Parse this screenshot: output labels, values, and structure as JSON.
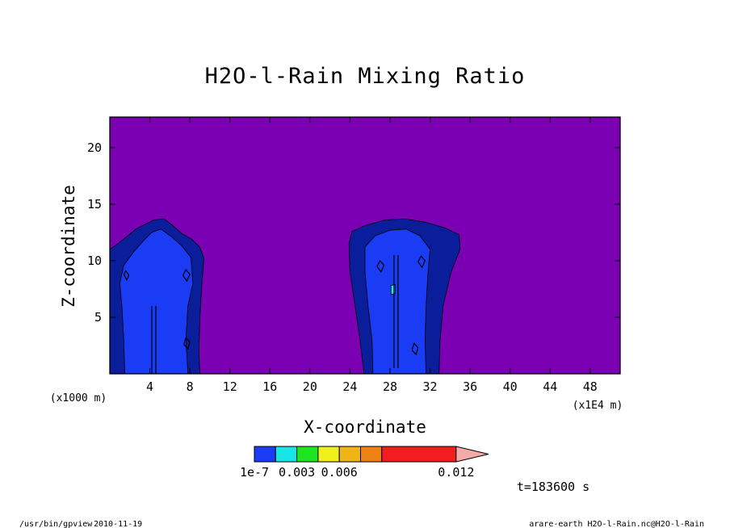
{
  "chart_data": {
    "type": "heatmap",
    "title": "H2O-l-Rain Mixing Ratio",
    "xlabel": "X-coordinate",
    "ylabel": "Z-coordinate",
    "x_unit": "(x1E4 m)",
    "y_unit": "(x1000 m)",
    "xlim": [
      0,
      51
    ],
    "ylim": [
      0,
      22.7
    ],
    "xticks": [
      4,
      8,
      12,
      16,
      20,
      24,
      28,
      32,
      36,
      40,
      44,
      48
    ],
    "yticks": [
      5,
      10,
      15,
      20
    ],
    "background_color": "#7b00b4",
    "colorbar": {
      "levels": [
        1e-07,
        0.0015,
        0.003,
        0.0045,
        0.006,
        0.0075,
        0.009,
        0.012
      ],
      "colors": [
        "#1a3cf5",
        "#18e6e6",
        "#1ee61e",
        "#f0f01e",
        "#f0b414",
        "#f08214",
        "#f01e1e",
        "#f57878",
        "#f5aaaa"
      ],
      "tick_labels": [
        {
          "value": 1e-07,
          "label": "1e-7"
        },
        {
          "value": 0.003,
          "label": "0.003"
        },
        {
          "value": 0.006,
          "label": "0.006"
        },
        {
          "value": 0.012,
          "label": "0.012"
        }
      ]
    },
    "regions": [
      {
        "level": "outer",
        "color": "#0a1e9c",
        "points": [
          [
            0,
            0
          ],
          [
            0,
            11
          ],
          [
            0.8,
            11.5
          ],
          [
            1.8,
            12.2
          ],
          [
            2.6,
            12.8
          ],
          [
            3.5,
            13.2
          ],
          [
            4.4,
            13.6
          ],
          [
            5.4,
            13.7
          ],
          [
            6.3,
            13.1
          ],
          [
            7.2,
            12.4
          ],
          [
            8.2,
            11.9
          ],
          [
            9,
            11.2
          ],
          [
            9.4,
            10.2
          ],
          [
            9.2,
            8
          ],
          [
            9,
            5
          ],
          [
            8.9,
            2
          ],
          [
            9,
            0
          ]
        ]
      },
      {
        "level": "1e-7",
        "color": "#1a3cf5",
        "points": [
          [
            1.5,
            0
          ],
          [
            1.4,
            3
          ],
          [
            1.2,
            6
          ],
          [
            1,
            8
          ],
          [
            1.4,
            9.6
          ],
          [
            2.4,
            10.8
          ],
          [
            3.4,
            11.8
          ],
          [
            4.2,
            12.5
          ],
          [
            5.1,
            12.8
          ],
          [
            6.2,
            12.1
          ],
          [
            7.2,
            11.3
          ],
          [
            8.1,
            10.3
          ],
          [
            8.3,
            8
          ],
          [
            7.8,
            6
          ],
          [
            7.6,
            3
          ],
          [
            7.8,
            0
          ]
        ]
      },
      {
        "level": "outer",
        "color": "#0a1e9c",
        "points": [
          [
            25.4,
            0
          ],
          [
            25,
            3
          ],
          [
            24.5,
            6
          ],
          [
            24,
            9
          ],
          [
            23.9,
            11.5
          ],
          [
            24.2,
            12.6
          ],
          [
            25.5,
            13.1
          ],
          [
            27.5,
            13.6
          ],
          [
            29.5,
            13.7
          ],
          [
            31.5,
            13.4
          ],
          [
            33.5,
            12.9
          ],
          [
            34.9,
            12.3
          ],
          [
            35,
            11
          ],
          [
            34.1,
            9
          ],
          [
            33.3,
            6
          ],
          [
            33,
            3
          ],
          [
            32.9,
            0
          ]
        ]
      },
      {
        "level": "1e-7",
        "color": "#1a3cf5",
        "points": [
          [
            26.3,
            0
          ],
          [
            26.2,
            3
          ],
          [
            25.8,
            6
          ],
          [
            25.5,
            9
          ],
          [
            25.5,
            11.2
          ],
          [
            26.5,
            12.2
          ],
          [
            28,
            12.7
          ],
          [
            29.6,
            12.8
          ],
          [
            31,
            12.2
          ],
          [
            32,
            11
          ],
          [
            31.8,
            9
          ],
          [
            31.6,
            6
          ],
          [
            31.5,
            3
          ],
          [
            31.6,
            0
          ]
        ]
      },
      {
        "level": "0.0015",
        "color": "#18e6e6",
        "points": [
          [
            28.1,
            7
          ],
          [
            28.5,
            7.1
          ],
          [
            28.5,
            7.9
          ],
          [
            28.1,
            7.8
          ]
        ]
      }
    ],
    "contour_lines": [
      [
        [
          4.2,
          0
        ],
        [
          4.2,
          6
        ]
      ],
      [
        [
          4.6,
          0
        ],
        [
          4.6,
          6
        ]
      ],
      [
        [
          28.4,
          0.5
        ],
        [
          28.4,
          10.5
        ]
      ],
      [
        [
          28.8,
          0.5
        ],
        [
          28.8,
          10.5
        ]
      ],
      [
        [
          1.4,
          8.8
        ],
        [
          1.7,
          8.3
        ],
        [
          1.9,
          8.7
        ],
        [
          1.6,
          9.1
        ],
        [
          1.4,
          8.8
        ]
      ],
      [
        [
          7.3,
          8.7
        ],
        [
          7.7,
          8.2
        ],
        [
          8,
          8.8
        ],
        [
          7.6,
          9.2
        ],
        [
          7.3,
          8.7
        ]
      ],
      [
        [
          7.4,
          2.6
        ],
        [
          7.8,
          2.2
        ],
        [
          8,
          2.8
        ],
        [
          7.6,
          3.2
        ],
        [
          7.4,
          2.6
        ]
      ],
      [
        [
          26.7,
          9.5
        ],
        [
          27.1,
          9
        ],
        [
          27.4,
          9.6
        ],
        [
          27,
          10
        ],
        [
          26.7,
          9.5
        ]
      ],
      [
        [
          30.8,
          9.9
        ],
        [
          31.2,
          9.4
        ],
        [
          31.5,
          10
        ],
        [
          31.1,
          10.4
        ],
        [
          30.8,
          9.9
        ]
      ],
      [
        [
          30.2,
          2.1
        ],
        [
          30.6,
          1.7
        ],
        [
          30.8,
          2.3
        ],
        [
          30.4,
          2.7
        ],
        [
          30.2,
          2.1
        ]
      ]
    ],
    "time_label": "t=183600 s"
  },
  "footer": {
    "program": "/usr/bin/gpview",
    "date": "2010-11-19",
    "source": "arare-earth_H2O-l-Rain.nc@H2O-l-Rain"
  }
}
